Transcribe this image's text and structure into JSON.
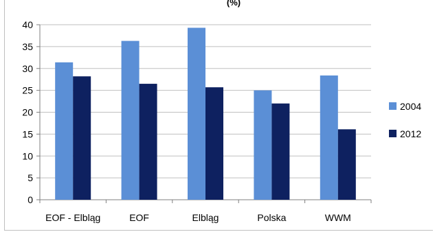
{
  "chart_data": {
    "type": "bar",
    "title": "(%)",
    "categories": [
      "EOF - Elbląg",
      "EOF",
      "Elbląg",
      "Polska",
      "WWM"
    ],
    "series": [
      {
        "name": "2004",
        "values": [
          31.4,
          36.3,
          39.3,
          25.0,
          28.4
        ],
        "color": "#5b8fd6"
      },
      {
        "name": "2012",
        "values": [
          28.2,
          26.5,
          25.7,
          22.0,
          16.1
        ],
        "color": "#0e2160"
      }
    ],
    "ylim": [
      0,
      40
    ],
    "yticks": [
      0,
      5,
      10,
      15,
      20,
      25,
      30,
      35,
      40
    ],
    "grid": true,
    "legend": "right"
  }
}
